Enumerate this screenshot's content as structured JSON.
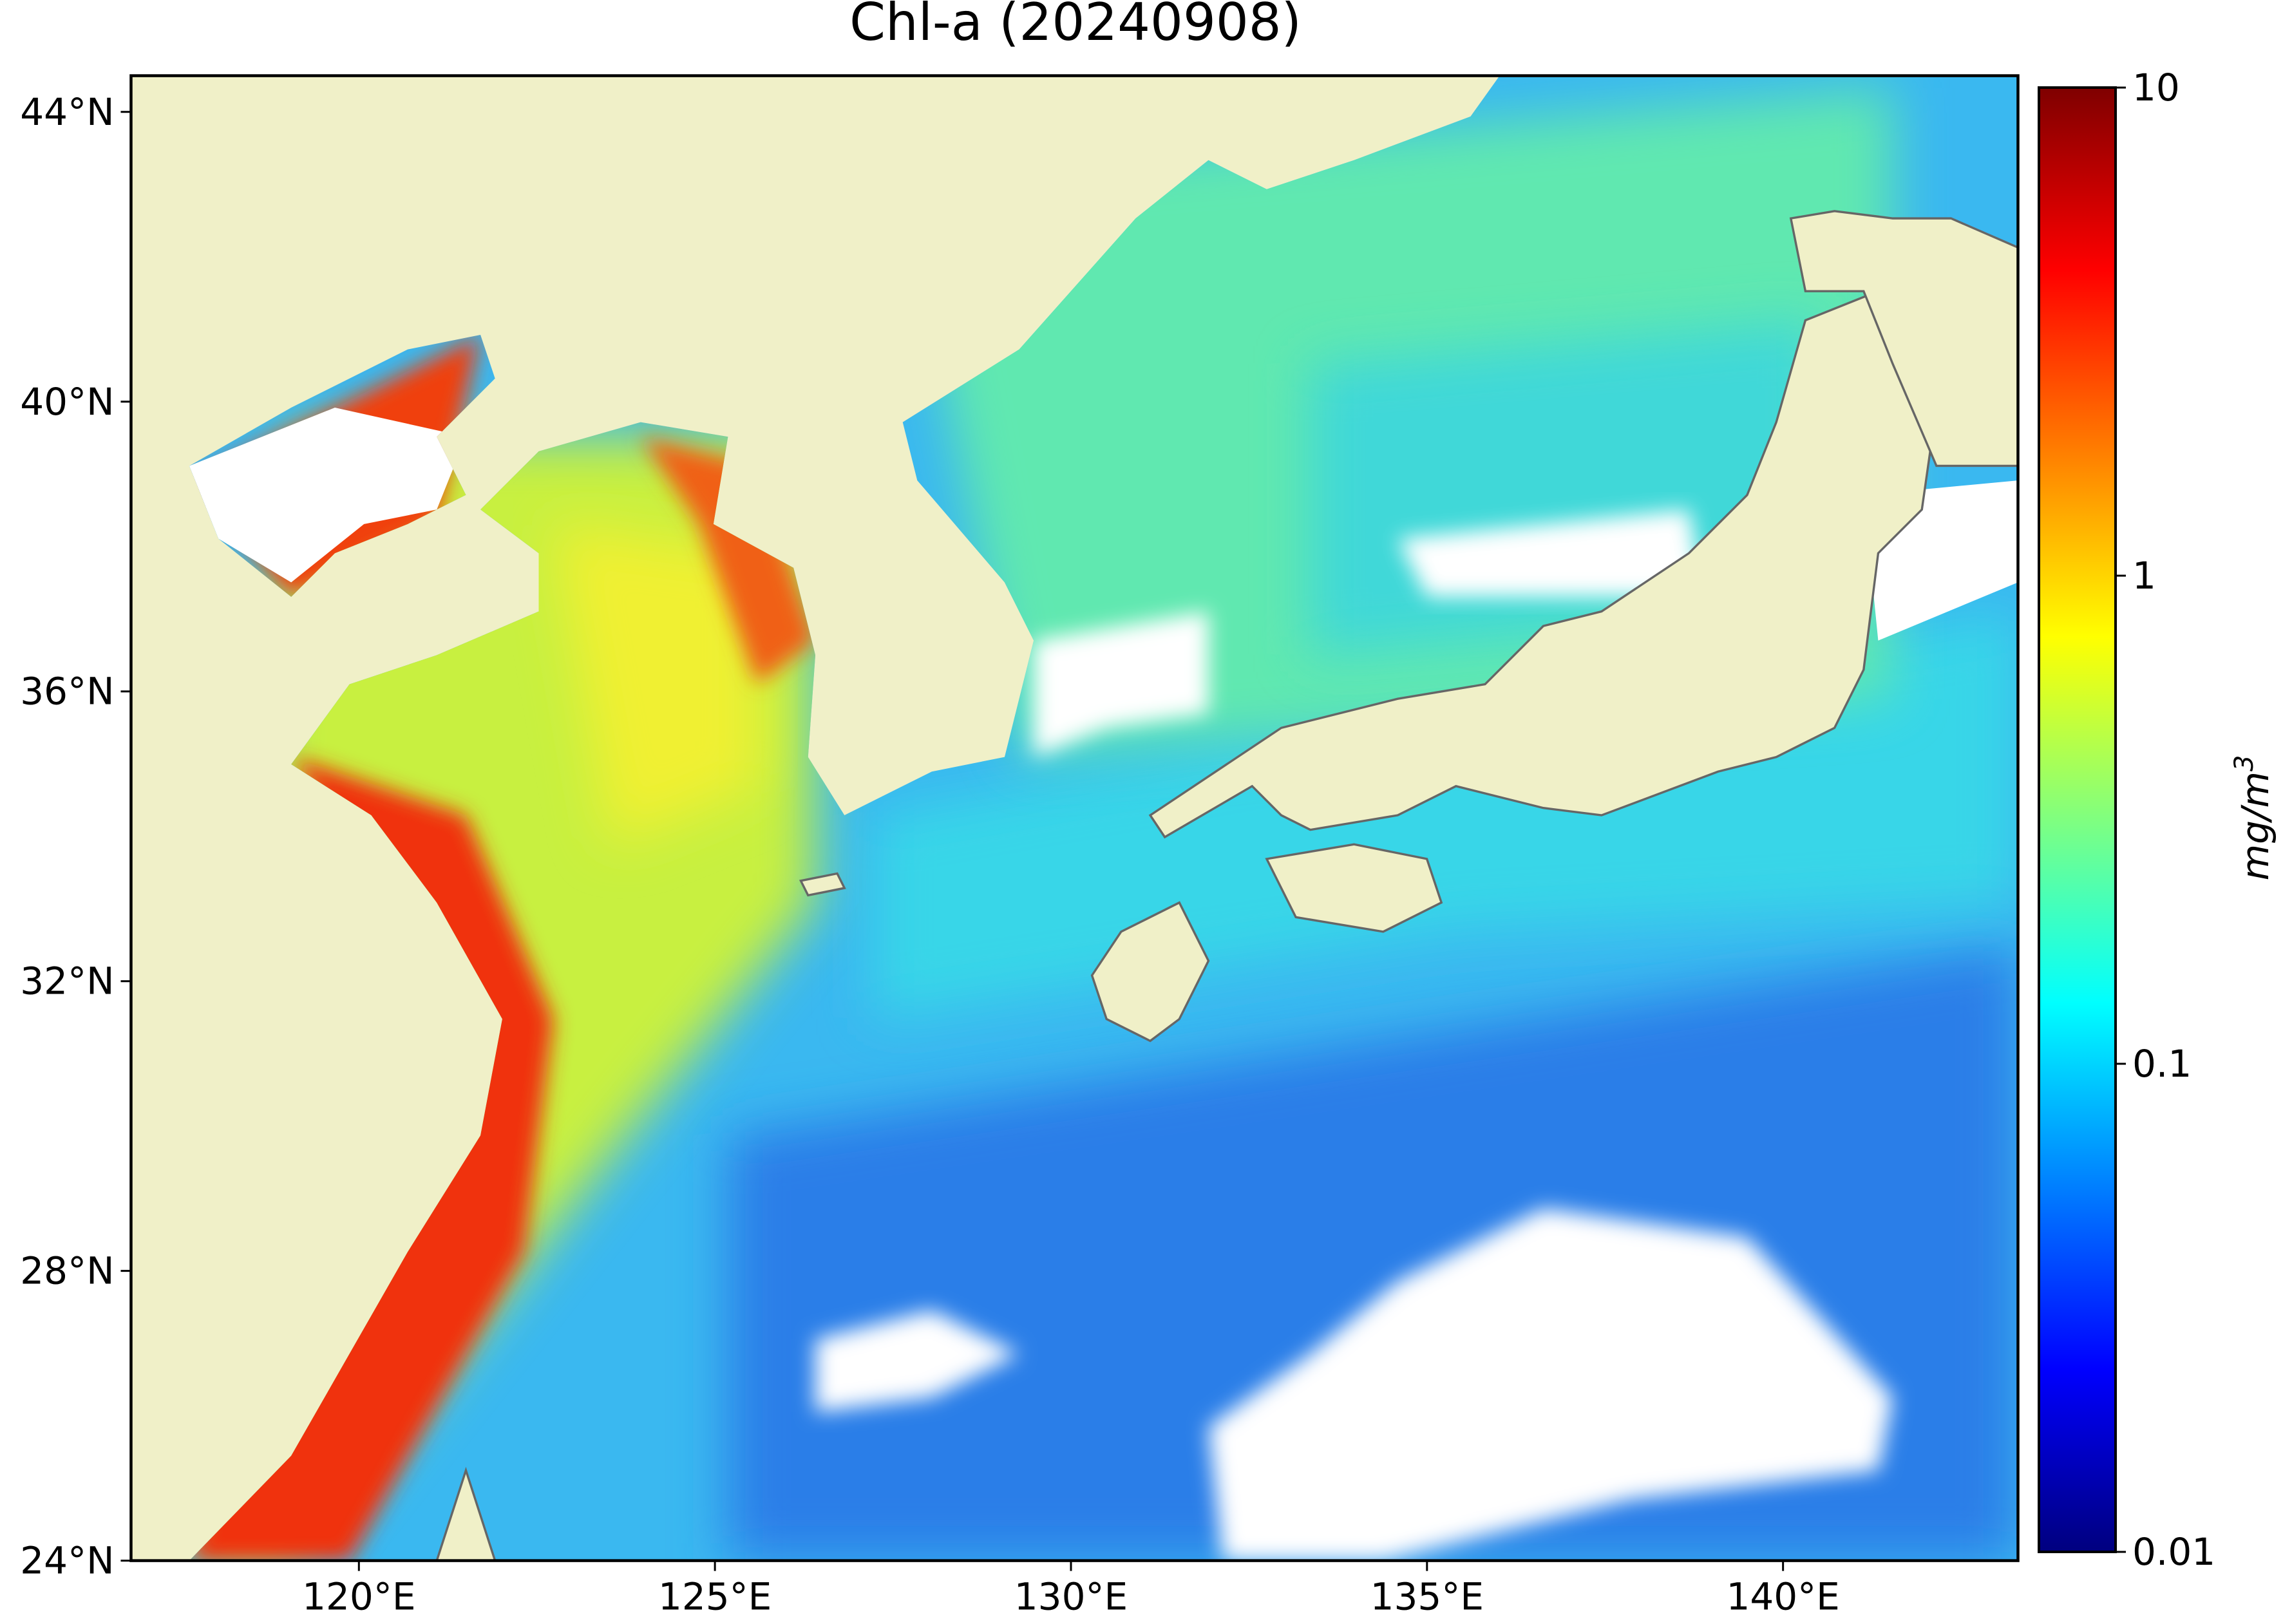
{
  "chart_data": {
    "type": "map",
    "title": "Chl-a (20240908)",
    "xlim": [
      116.8,
      143.3
    ],
    "ylim": [
      24,
      44.5
    ],
    "xticks": [
      {
        "value": 120,
        "label": "120°E"
      },
      {
        "value": 125,
        "label": "125°E"
      },
      {
        "value": 130,
        "label": "130°E"
      },
      {
        "value": 135,
        "label": "135°E"
      },
      {
        "value": 140,
        "label": "140°E"
      }
    ],
    "yticks": [
      {
        "value": 24,
        "label": "24°N"
      },
      {
        "value": 28,
        "label": "28°N"
      },
      {
        "value": 32,
        "label": "32°N"
      },
      {
        "value": 36,
        "label": "36°N"
      },
      {
        "value": 40,
        "label": "40°N"
      },
      {
        "value": 44,
        "label": "44°N"
      }
    ],
    "colorbar": {
      "colormap": "jet",
      "scale": "log",
      "lim": [
        0.01,
        10
      ],
      "ticks": [
        0.01,
        0.1,
        1,
        10
      ],
      "label": "mg/m",
      "label_superscript": "3"
    }
  }
}
